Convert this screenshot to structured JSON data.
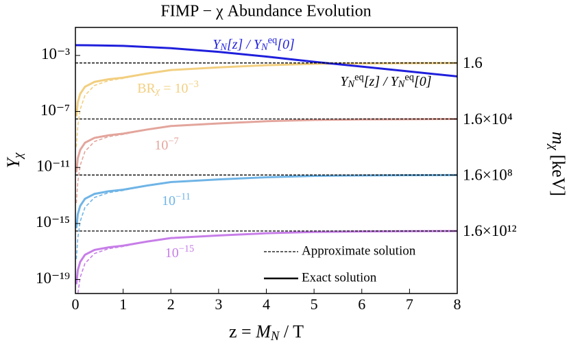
{
  "chart_data": {
    "type": "line",
    "title": "FIMP − χ Abundance Evolution",
    "x_label": {
      "parts": [
        {
          "text": "z = "
        },
        {
          "text": "M",
          "italic": true
        },
        {
          "text": "N",
          "italic": true,
          "shift": "sub"
        },
        {
          "text": " / T"
        }
      ]
    },
    "y_label": {
      "parts": [
        {
          "text": "Y",
          "italic": true
        },
        {
          "text": "χ",
          "italic": true,
          "shift": "sub"
        }
      ]
    },
    "y2_label": {
      "parts": [
        {
          "text": "m",
          "italic": true
        },
        {
          "text": "χ",
          "italic": true,
          "shift": "sub"
        },
        {
          "text": " [keV]"
        }
      ]
    },
    "xlim": [
      0,
      8
    ],
    "xticks": [
      0,
      1,
      2,
      3,
      4,
      5,
      6,
      7,
      8
    ],
    "ylim": [
      1e-20,
      0.1
    ],
    "yscale": "log",
    "yticks": [
      {
        "value": 0.001,
        "label": "10⁻³"
      },
      {
        "value": 1e-07,
        "label": "10⁻⁷"
      },
      {
        "value": 1e-11,
        "label": "10⁻¹¹"
      },
      {
        "value": 1e-15,
        "label": "10⁻¹⁵"
      },
      {
        "value": 1e-19,
        "label": "10⁻¹⁹"
      }
    ],
    "y2lim": [
      0.0046,
      4.6e+16
    ],
    "y2scale": "log",
    "y2ticks": [
      1.6,
      {
        "value": 16000,
        "label": "1.6×10⁴"
      },
      {
        "value": 160000000,
        "label": "1.6×10⁸"
      },
      {
        "value": 1600000000000,
        "label": "1.6×10¹²"
      }
    ],
    "series": [
      {
        "color": "#f2cf80",
        "style": "solid",
        "x": [
          0.02,
          0.05,
          0.1,
          0.2,
          0.4,
          0.7,
          1,
          1.5,
          2,
          3,
          4,
          5,
          6,
          7,
          8
        ],
        "values": [
          4.6e-08,
          4.6e-07,
          1.8e-06,
          5.8e-06,
          1.3e-05,
          2e-05,
          2.6e-05,
          5.1e-05,
          9.1e-05,
          0.00014,
          0.0002,
          0.00025,
          0.00027,
          0.00028,
          0.00029
        ]
      },
      {
        "color": "#f2cf80",
        "style": "dashed",
        "x": [
          0.02,
          0.05,
          0.1,
          0.2,
          0.4,
          0.7,
          1,
          1.5,
          2,
          3,
          4,
          5,
          6,
          7,
          8
        ],
        "values": [
          2.9e-10,
          9.1e-09,
          1.4e-07,
          1.4e-06,
          7.2e-06,
          1.6e-05,
          2.3e-05,
          5.1e-05,
          9.1e-05,
          0.00014,
          0.0002,
          0.00025,
          0.00027,
          0.00028,
          0.00029
        ]
      },
      {
        "color": "#e3a59c",
        "style": "solid",
        "x": [
          0.02,
          0.05,
          0.1,
          0.2,
          0.4,
          0.7,
          1,
          1.5,
          2,
          3,
          4,
          5,
          6,
          7,
          8
        ],
        "values": [
          4.6e-12,
          4.6e-11,
          1.8e-10,
          5.8e-10,
          1.3e-09,
          2e-09,
          2.6e-09,
          5.1e-09,
          9.1e-09,
          1.4e-08,
          2e-08,
          2.5e-08,
          2.7e-08,
          2.8e-08,
          2.9e-08
        ]
      },
      {
        "color": "#e3a59c",
        "style": "dashed",
        "x": [
          0.02,
          0.05,
          0.1,
          0.2,
          0.4,
          0.7,
          1,
          1.5,
          2,
          3,
          4,
          5,
          6,
          7,
          8
        ],
        "values": [
          2.9e-14,
          9.1e-13,
          1.4e-11,
          1.4e-10,
          7.2e-10,
          1.6e-09,
          2.3e-09,
          5.1e-09,
          9.1e-09,
          1.4e-08,
          2e-08,
          2.5e-08,
          2.7e-08,
          2.8e-08,
          2.9e-08
        ]
      },
      {
        "color": "#6fb4e6",
        "style": "solid",
        "x": [
          0.02,
          0.05,
          0.1,
          0.2,
          0.4,
          0.7,
          1,
          1.5,
          2,
          3,
          4,
          5,
          6,
          7,
          8
        ],
        "values": [
          4.6e-16,
          4.6e-15,
          1.8e-14,
          5.8e-14,
          1.3e-13,
          2e-13,
          2.6e-13,
          5.1e-13,
          9.1e-13,
          1.4e-12,
          2e-12,
          2.5e-12,
          2.7e-12,
          2.8e-12,
          2.9e-12
        ]
      },
      {
        "color": "#6fb4e6",
        "style": "dashed",
        "x": [
          0.02,
          0.05,
          0.1,
          0.2,
          0.4,
          0.7,
          1,
          1.5,
          2,
          3,
          4,
          5,
          6,
          7,
          8
        ],
        "values": [
          2.9e-18,
          9.1e-17,
          1.4e-15,
          1.4e-14,
          7.2e-14,
          1.6e-13,
          2.3e-13,
          5.1e-13,
          9.1e-13,
          1.4e-12,
          2e-12,
          2.5e-12,
          2.7e-12,
          2.8e-12,
          2.9e-12
        ]
      },
      {
        "color": "#c77ee8",
        "style": "solid",
        "x": [
          0.02,
          0.05,
          0.1,
          0.2,
          0.4,
          0.7,
          1,
          1.5,
          2,
          3,
          4,
          5,
          6,
          7,
          8
        ],
        "values": [
          4.6e-20,
          4.6e-19,
          1.8e-18,
          5.8e-18,
          1.3e-17,
          2e-17,
          2.6e-17,
          5.1e-17,
          9.1e-17,
          1.4e-16,
          2e-16,
          2.5e-16,
          2.7e-16,
          2.8e-16,
          2.9e-16
        ]
      },
      {
        "color": "#c77ee8",
        "style": "dashed",
        "x": [
          0.02,
          0.05,
          0.1,
          0.2,
          0.4,
          0.7,
          1,
          1.5,
          2,
          3,
          4,
          5,
          6,
          7,
          8
        ],
        "values": [
          2.9e-22,
          9.1e-21,
          1.4e-19,
          1.4e-18,
          7.2e-18,
          1.6e-17,
          2.3e-17,
          5.1e-17,
          9.1e-17,
          1.4e-16,
          2e-16,
          2.5e-16,
          2.7e-16,
          2.8e-16,
          2.9e-16
        ]
      },
      {
        "color": "#1f1fdc",
        "style": "solid",
        "x": [
          0,
          0.5,
          1,
          2,
          3,
          4,
          5,
          6,
          7,
          8
        ],
        "values": [
          0.0054,
          0.0052,
          0.0048,
          0.0033,
          0.0018,
          0.00083,
          0.00035,
          0.00016,
          7.1e-05,
          3.2e-05
        ]
      },
      {
        "color": "#000000",
        "style": "dashed-thin",
        "x": [
          0,
          8
        ],
        "values": [
          0.00029,
          0.00029
        ]
      },
      {
        "color": "#000000",
        "style": "dashed-thin",
        "x": [
          0,
          8
        ],
        "values": [
          2.9e-08,
          2.9e-08
        ]
      },
      {
        "color": "#000000",
        "style": "dashed-thin",
        "x": [
          0,
          8
        ],
        "values": [
          2.9e-12,
          2.9e-12
        ]
      },
      {
        "color": "#000000",
        "style": "dashed-thin",
        "x": [
          0,
          8
        ],
        "values": [
          2.9e-16,
          2.9e-16
        ]
      }
    ],
    "annotations": [
      {
        "color": "#1f1fdc",
        "parts": [
          {
            "text": "Y",
            "italic": true
          },
          {
            "text": "N",
            "italic": true,
            "shift": "sub"
          },
          {
            "text": "[z] / ",
            "italic": true
          },
          {
            "text": "Y",
            "italic": true
          },
          {
            "text": "N",
            "italic": true,
            "shift": "sub"
          },
          {
            "text": "eq",
            "shift": "sup"
          },
          {
            "text": "[0]",
            "italic": true
          }
        ]
      },
      {
        "color": "#000000",
        "parts": [
          {
            "text": "Y",
            "italic": true
          },
          {
            "text": "N",
            "italic": true,
            "shift": "sub"
          },
          {
            "text": "eq",
            "shift": "sup"
          },
          {
            "text": "[z] / ",
            "italic": true
          },
          {
            "text": "Y",
            "italic": true
          },
          {
            "text": "N",
            "italic": true,
            "shift": "sub"
          },
          {
            "text": "eq",
            "shift": "sup"
          },
          {
            "text": "[0]",
            "italic": true
          }
        ]
      },
      {
        "color": "#f2cf80",
        "parts": [
          {
            "text": "BR"
          },
          {
            "text": "χ",
            "italic": true,
            "shift": "sub"
          },
          {
            "text": " = 10"
          },
          {
            "text": "−3",
            "shift": "sup"
          }
        ]
      },
      {
        "color": "#e3a59c",
        "parts": [
          {
            "text": "10"
          },
          {
            "text": "−7",
            "shift": "sup"
          }
        ]
      },
      {
        "color": "#6fb4e6",
        "parts": [
          {
            "text": "10"
          },
          {
            "text": "−11",
            "shift": "sup"
          }
        ]
      },
      {
        "color": "#c77ee8",
        "parts": [
          {
            "text": "10"
          },
          {
            "text": "−15",
            "shift": "sup"
          }
        ]
      }
    ],
    "legend": [
      {
        "label": "Approximate solution",
        "style": "dashed-thin"
      },
      {
        "label": "Exact solution",
        "style": "solid"
      }
    ]
  }
}
